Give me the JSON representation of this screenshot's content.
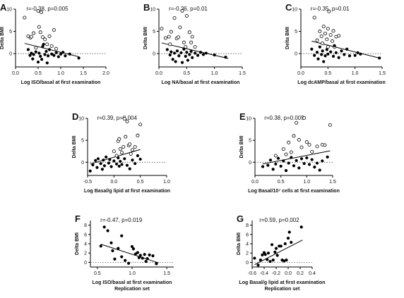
{
  "chart_data": [
    {
      "panel": "A",
      "type": "scatter",
      "stat": "r=-0.38, p=0.005",
      "xlabel": "Log ISO/basal at first examination",
      "ylabel": "Delta BMI",
      "xlim": [
        0,
        2.0
      ],
      "ylim": [
        -3,
        10
      ],
      "xticks": [
        "0.0",
        "0.5",
        "1.0",
        "1.5",
        "2.0"
      ],
      "yticks": [
        "0",
        "5",
        "10"
      ],
      "open": [
        [
          0.2,
          8.1
        ],
        [
          0.28,
          3.9
        ],
        [
          0.33,
          3.6
        ],
        [
          0.35,
          3.8
        ],
        [
          0.4,
          4.6
        ],
        [
          0.45,
          1.3
        ],
        [
          0.5,
          9.6
        ],
        [
          0.52,
          6.0
        ],
        [
          0.55,
          4.8
        ],
        [
          0.57,
          9.3
        ],
        [
          0.6,
          3.7
        ],
        [
          0.65,
          3.2
        ],
        [
          0.7,
          2.1
        ],
        [
          0.75,
          3.9
        ],
        [
          0.8,
          1.7
        ],
        [
          0.9,
          1.1
        ],
        [
          0.85,
          5.3
        ]
      ],
      "filled": [
        [
          0.28,
          0.9
        ],
        [
          0.32,
          -0.4
        ],
        [
          0.35,
          0.1
        ],
        [
          0.38,
          -1.2
        ],
        [
          0.4,
          -0.2
        ],
        [
          0.45,
          0.4
        ],
        [
          0.5,
          -1.9
        ],
        [
          0.52,
          0.1
        ],
        [
          0.55,
          -0.6
        ],
        [
          0.58,
          -1.3
        ],
        [
          0.6,
          1.6
        ],
        [
          0.62,
          2.1
        ],
        [
          0.65,
          -0.2
        ],
        [
          0.68,
          0.5
        ],
        [
          0.7,
          -2.1
        ],
        [
          0.72,
          -0.5
        ],
        [
          0.75,
          0.9
        ],
        [
          0.8,
          -0.1
        ],
        [
          0.85,
          -0.4
        ],
        [
          0.9,
          0.2
        ],
        [
          0.95,
          -0.7
        ],
        [
          1.0,
          -0.1
        ],
        [
          1.05,
          0.3
        ],
        [
          1.1,
          -0.5
        ],
        [
          1.2,
          -0.1
        ],
        [
          1.4,
          -1.0
        ]
      ],
      "fit": [
        [
          0.2,
          2.3
        ],
        [
          1.4,
          -0.7
        ]
      ],
      "ref_y": 0
    },
    {
      "panel": "B",
      "type": "scatter",
      "stat": "r=-0.36, p=0.01",
      "xlabel": "Log NA/basal at first examination",
      "ylabel": "Delta BMI",
      "xlim": [
        0,
        1.5
      ],
      "ylim": [
        -3,
        10
      ],
      "xticks": [
        "0.0",
        "0.5",
        "1.0",
        "1.5"
      ],
      "yticks": [
        "0",
        "5",
        "10"
      ],
      "open": [
        [
          0.05,
          5.6
        ],
        [
          0.12,
          3.5
        ],
        [
          0.18,
          3.8
        ],
        [
          0.2,
          2.1
        ],
        [
          0.22,
          4.9
        ],
        [
          0.28,
          8.0
        ],
        [
          0.32,
          3.4
        ],
        [
          0.35,
          3.7
        ],
        [
          0.38,
          5.9
        ],
        [
          0.42,
          9.6
        ],
        [
          0.45,
          2.5
        ],
        [
          0.48,
          1.5
        ],
        [
          0.5,
          8.5
        ],
        [
          0.55,
          4.8
        ],
        [
          0.58,
          2.5
        ],
        [
          0.65,
          1.5
        ],
        [
          0.6,
          3.8
        ]
      ],
      "filled": [
        [
          0.15,
          0.9
        ],
        [
          0.2,
          -0.3
        ],
        [
          0.22,
          0.4
        ],
        [
          0.25,
          -1.3
        ],
        [
          0.28,
          0.1
        ],
        [
          0.3,
          -1.8
        ],
        [
          0.33,
          0.6
        ],
        [
          0.36,
          -0.5
        ],
        [
          0.4,
          0.2
        ],
        [
          0.42,
          -2.0
        ],
        [
          0.45,
          1.0
        ],
        [
          0.48,
          -0.6
        ],
        [
          0.5,
          0.3
        ],
        [
          0.52,
          -1.5
        ],
        [
          0.55,
          -0.2
        ],
        [
          0.58,
          0.5
        ],
        [
          0.6,
          -0.9
        ],
        [
          0.65,
          0.1
        ],
        [
          0.7,
          -0.4
        ],
        [
          0.75,
          0.3
        ],
        [
          0.8,
          -0.2
        ],
        [
          0.85,
          0.1
        ],
        [
          1.2,
          -0.8
        ],
        [
          1.0,
          -0.3
        ]
      ],
      "fit": [
        [
          0.05,
          2.4
        ],
        [
          1.25,
          -1.1
        ]
      ],
      "ref_y": 0
    },
    {
      "panel": "C",
      "type": "scatter",
      "stat": "r=-0.35, p=0.01",
      "xlabel": "Log dcAMP/basal at first examination",
      "ylabel": "Delta BMI",
      "xlim": [
        0,
        1.5
      ],
      "ylim": [
        -3,
        10
      ],
      "xticks": [
        "0.0",
        "0.5",
        "1.0",
        "1.5"
      ],
      "yticks": [
        "0",
        "5",
        "10"
      ],
      "open": [
        [
          0.25,
          8.1
        ],
        [
          0.3,
          3.0
        ],
        [
          0.35,
          5.0
        ],
        [
          0.38,
          3.9
        ],
        [
          0.4,
          2.3
        ],
        [
          0.42,
          6.1
        ],
        [
          0.45,
          4.5
        ],
        [
          0.48,
          3.2
        ],
        [
          0.5,
          5.6
        ],
        [
          0.52,
          9.5
        ],
        [
          0.55,
          4.2
        ],
        [
          0.58,
          2.8
        ],
        [
          0.6,
          5.1
        ],
        [
          0.62,
          1.5
        ],
        [
          0.65,
          3.8
        ],
        [
          0.7,
          4.0
        ],
        [
          0.5,
          1.5
        ]
      ],
      "filled": [
        [
          0.2,
          1.0
        ],
        [
          0.25,
          -0.4
        ],
        [
          0.3,
          0.3
        ],
        [
          0.32,
          -1.2
        ],
        [
          0.35,
          1.5
        ],
        [
          0.38,
          -0.2
        ],
        [
          0.4,
          0.6
        ],
        [
          0.42,
          -1.8
        ],
        [
          0.45,
          -0.5
        ],
        [
          0.48,
          0.9
        ],
        [
          0.5,
          -0.1
        ],
        [
          0.55,
          0.4
        ],
        [
          0.6,
          -0.6
        ],
        [
          0.62,
          1.8
        ],
        [
          0.65,
          0.2
        ],
        [
          0.7,
          -0.9
        ],
        [
          0.75,
          0.6
        ],
        [
          0.8,
          -0.2
        ],
        [
          0.85,
          1.0
        ],
        [
          0.9,
          -0.5
        ],
        [
          1.0,
          -0.4
        ],
        [
          1.05,
          0.2
        ],
        [
          1.1,
          -0.1
        ],
        [
          1.45,
          -1.0
        ]
      ],
      "fit": [
        [
          0.2,
          2.8
        ],
        [
          1.45,
          -1.0
        ]
      ],
      "ref_y": 0
    },
    {
      "panel": "D",
      "type": "scatter",
      "stat": "r=0.39, p=0.004",
      "xlabel": "Log Basal/g lipid at first examination",
      "ylabel": "Delta BMI",
      "xlim": [
        -0.5,
        1.0
      ],
      "ylim": [
        -3,
        10
      ],
      "xticks": [
        "-0.5",
        "0.0",
        "0.5",
        "1.0"
      ],
      "yticks": [
        "0",
        "5",
        "10"
      ],
      "open": [
        [
          0.0,
          2.5
        ],
        [
          0.08,
          4.8
        ],
        [
          0.1,
          5.3
        ],
        [
          0.12,
          3.0
        ],
        [
          0.15,
          2.2
        ],
        [
          0.18,
          3.5
        ],
        [
          0.2,
          9.9
        ],
        [
          0.22,
          5.8
        ],
        [
          0.25,
          9.3
        ],
        [
          0.28,
          3.8
        ],
        [
          0.3,
          4.1
        ],
        [
          0.35,
          2.8
        ],
        [
          0.4,
          3.5
        ],
        [
          0.45,
          6.1
        ],
        [
          0.5,
          8.6
        ],
        [
          0.05,
          1.5
        ],
        [
          0.32,
          1.9
        ]
      ],
      "filled": [
        [
          -0.45,
          -2.0
        ],
        [
          -0.4,
          -0.6
        ],
        [
          -0.35,
          0.4
        ],
        [
          -0.32,
          -1.2
        ],
        [
          -0.3,
          0.8
        ],
        [
          -0.25,
          -0.3
        ],
        [
          -0.22,
          -1.6
        ],
        [
          -0.2,
          0.5
        ],
        [
          -0.18,
          -0.8
        ],
        [
          -0.15,
          1.2
        ],
        [
          -0.1,
          -0.2
        ],
        [
          -0.08,
          0.6
        ],
        [
          -0.05,
          -1.0
        ],
        [
          0.0,
          0.3
        ],
        [
          0.05,
          -0.4
        ],
        [
          0.08,
          1.0
        ],
        [
          0.1,
          -0.9
        ],
        [
          0.12,
          0.2
        ],
        [
          0.15,
          -0.5
        ],
        [
          0.2,
          0.8
        ],
        [
          0.25,
          -0.7
        ],
        [
          0.3,
          -1.5
        ],
        [
          0.35,
          0.5
        ],
        [
          0.4,
          -0.3
        ],
        [
          0.45,
          1.5
        ],
        [
          0.5,
          0.7
        ]
      ],
      "fit": [
        [
          -0.45,
          -0.4
        ],
        [
          0.5,
          2.9
        ]
      ],
      "ref_y": 0
    },
    {
      "panel": "E",
      "type": "scatter",
      "stat": "r=0.38, p=0.005",
      "xlabel": "Log Basal/10⁷ cells at first examination",
      "ylabel": "Delta BMI",
      "xlim": [
        0,
        1.5
      ],
      "ylim": [
        -3,
        10
      ],
      "xticks": [
        "0.0",
        "0.5",
        "1.0",
        "1.5"
      ],
      "yticks": [
        "0",
        "5",
        "10"
      ],
      "open": [
        [
          0.4,
          1.5
        ],
        [
          0.55,
          3.0
        ],
        [
          0.65,
          4.5
        ],
        [
          0.7,
          2.3
        ],
        [
          0.75,
          6.0
        ],
        [
          0.8,
          9.0
        ],
        [
          0.85,
          5.1
        ],
        [
          0.9,
          3.4
        ],
        [
          0.95,
          10.1
        ],
        [
          1.0,
          4.6
        ],
        [
          1.05,
          4.0
        ],
        [
          1.1,
          2.4
        ],
        [
          1.2,
          3.6
        ],
        [
          1.3,
          4.0
        ],
        [
          1.35,
          3.9
        ],
        [
          1.45,
          8.5
        ],
        [
          0.6,
          1.8
        ]
      ],
      "filled": [
        [
          0.15,
          -1.0
        ],
        [
          0.25,
          -0.7
        ],
        [
          0.3,
          0.5
        ],
        [
          0.35,
          -1.6
        ],
        [
          0.4,
          -0.4
        ],
        [
          0.45,
          0.9
        ],
        [
          0.5,
          -0.9
        ],
        [
          0.55,
          0.3
        ],
        [
          0.6,
          -1.9
        ],
        [
          0.65,
          -0.2
        ],
        [
          0.7,
          1.1
        ],
        [
          0.75,
          -0.8
        ],
        [
          0.8,
          0.4
        ],
        [
          0.85,
          -1.3
        ],
        [
          0.9,
          0.8
        ],
        [
          0.95,
          -0.3
        ],
        [
          1.0,
          1.0
        ],
        [
          1.05,
          -0.5
        ],
        [
          1.1,
          0.6
        ],
        [
          1.15,
          -1.1
        ],
        [
          1.2,
          -0.2
        ],
        [
          1.25,
          -1.8
        ],
        [
          1.3,
          0.3
        ],
        [
          1.4,
          1.2
        ]
      ],
      "fit": [
        [
          0.15,
          -0.4
        ],
        [
          1.45,
          2.6
        ]
      ],
      "ref_y": 0
    },
    {
      "panel": "F",
      "type": "scatter",
      "stat": "r=-0.47, p=0.019",
      "xlabel": "Log ISO/basal at first examination",
      "xlabel2": "Replication set",
      "ylabel": "Delta BMI",
      "xlim": [
        0.4,
        1.6
      ],
      "ylim": [
        -1,
        9
      ],
      "xticks": [
        "0.5",
        "1.0",
        "1.5"
      ],
      "yticks": [
        "0",
        "2",
        "4",
        "6",
        "8"
      ],
      "open": [],
      "filled": [
        [
          0.55,
          3.5
        ],
        [
          0.6,
          7.6
        ],
        [
          0.65,
          6.8
        ],
        [
          0.7,
          4.2
        ],
        [
          0.72,
          2.5
        ],
        [
          0.75,
          0.7
        ],
        [
          0.8,
          3.0
        ],
        [
          0.85,
          5.7
        ],
        [
          0.9,
          0.4
        ],
        [
          0.95,
          -0.2
        ],
        [
          1.0,
          3.4
        ],
        [
          1.02,
          2.9
        ],
        [
          1.05,
          1.8
        ],
        [
          1.08,
          2.1
        ],
        [
          1.1,
          1.0
        ],
        [
          1.12,
          1.5
        ],
        [
          1.15,
          0.9
        ],
        [
          1.18,
          1.7
        ],
        [
          1.2,
          0.2
        ],
        [
          1.22,
          0.8
        ],
        [
          1.25,
          1.6
        ],
        [
          1.3,
          1.4
        ],
        [
          1.35,
          -0.3
        ],
        [
          0.85,
          1.2
        ]
      ],
      "fit": [
        [
          0.55,
          3.9
        ],
        [
          1.38,
          -0.1
        ]
      ],
      "ref_y": 0
    },
    {
      "panel": "G",
      "type": "scatter",
      "stat": "r=0.59, p=0.002",
      "xlabel": "Log Basal/g lipid at first examination",
      "xlabel2": "Replication set",
      "ylabel": "Delta BMI",
      "xlim": [
        -0.6,
        0.4
      ],
      "ylim": [
        -1,
        9
      ],
      "xticks": [
        "-0.6",
        "-0.4",
        "-0.2",
        "0.0",
        "0.2",
        "0.4"
      ],
      "yticks": [
        "0",
        "2",
        "4",
        "6",
        "8"
      ],
      "open": [],
      "filled": [
        [
          -0.56,
          0.9
        ],
        [
          -0.5,
          -0.6
        ],
        [
          -0.46,
          0.5
        ],
        [
          -0.43,
          1.6
        ],
        [
          -0.4,
          2.1
        ],
        [
          -0.38,
          1.7
        ],
        [
          -0.35,
          0.6
        ],
        [
          -0.33,
          2.0
        ],
        [
          -0.3,
          0.2
        ],
        [
          -0.27,
          3.8
        ],
        [
          -0.25,
          0.5
        ],
        [
          -0.22,
          2.2
        ],
        [
          -0.2,
          3.0
        ],
        [
          -0.18,
          1.5
        ],
        [
          -0.15,
          3.5
        ],
        [
          -0.12,
          3.5
        ],
        [
          -0.1,
          0.5
        ],
        [
          -0.07,
          0.3
        ],
        [
          -0.05,
          4.0
        ],
        [
          -0.03,
          0.5
        ],
        [
          0.0,
          5.2
        ],
        [
          0.02,
          6.5
        ],
        [
          0.05,
          4.3
        ],
        [
          0.22,
          7.6
        ]
      ],
      "fit": [
        [
          -0.56,
          -0.5
        ],
        [
          0.24,
          4.8
        ]
      ],
      "ref_y": 0
    }
  ]
}
